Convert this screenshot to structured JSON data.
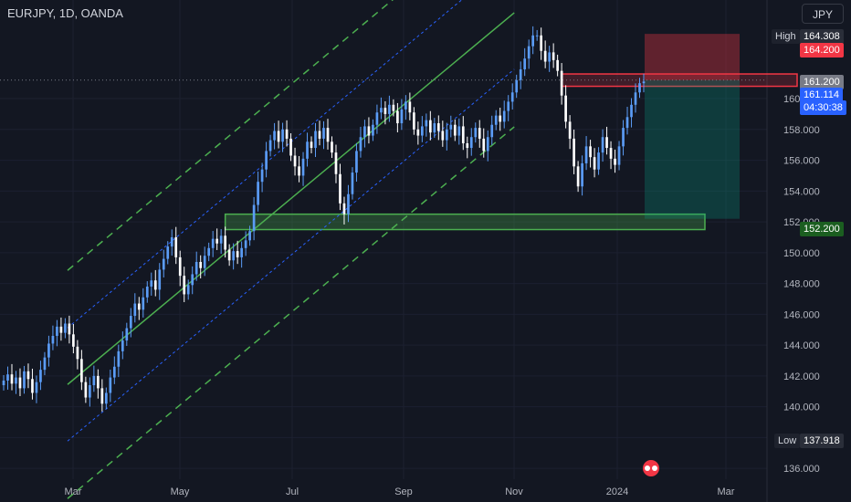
{
  "header": {
    "symbol": "EURJPY, 1D, OANDA",
    "currency": "JPY"
  },
  "price_tags": {
    "high_label": "High",
    "high_value": "164.308",
    "low_label": "Low",
    "low_value": "137.918",
    "target_high": "164.200",
    "resistance": "161.200",
    "last_price": "161.114",
    "countdown": "04:30:38",
    "support": "152.200"
  },
  "colors": {
    "background": "#131722",
    "up": "#5b9cf6",
    "down": "#ffffff",
    "channel": "#4caf50",
    "mid": "#2962ff",
    "support_zone": "#4caf50",
    "resistance_zone": "#f23645",
    "tp": "#089981",
    "sl": "#f23645"
  },
  "chart_data": {
    "type": "candlestick",
    "title": "EURJPY, 1D, OANDA",
    "x_ticks": [
      "Mar",
      "May",
      "Jul",
      "Sep",
      "Nov",
      "2024",
      "Mar"
    ],
    "y_ticks": [
      136,
      138,
      140,
      142,
      144,
      146,
      148,
      150,
      152,
      154,
      156,
      158,
      160
    ],
    "ylim": [
      135.3,
      166.4
    ],
    "series": [
      {
        "name": "EURJPY",
        "close": [
          141.7,
          142.1,
          141.5,
          141.9,
          141.2,
          142.3,
          141.8,
          140.9,
          141.6,
          142.4,
          143.2,
          144.1,
          144.6,
          145.2,
          144.8,
          145.4,
          144.7,
          143.9,
          143.1,
          141.6,
          140.6,
          141.4,
          142.0,
          141.2,
          140.2,
          140.9,
          141.9,
          142.6,
          143.6,
          144.3,
          145.1,
          145.9,
          146.7,
          146.3,
          147.1,
          147.8,
          148.2,
          147.6,
          148.9,
          149.6,
          150.4,
          151.0,
          149.7,
          148.5,
          147.3,
          147.9,
          148.6,
          149.4,
          149.0,
          149.8,
          150.3,
          150.9,
          150.6,
          151.1,
          150.2,
          149.5,
          150.1,
          149.7,
          150.3,
          150.8,
          151.4,
          153.1,
          154.6,
          155.4,
          156.6,
          157.3,
          157.9,
          157.2,
          158.0,
          157.4,
          156.3,
          155.6,
          155.0,
          156.1,
          157.2,
          156.8,
          157.9,
          157.4,
          158.1,
          157.2,
          156.5,
          155.1,
          153.2,
          152.5,
          153.8,
          155.2,
          156.6,
          157.5,
          158.2,
          157.6,
          158.3,
          159.1,
          159.4,
          159.0,
          159.6,
          159.2,
          158.4,
          159.3,
          159.8,
          159.1,
          158.0,
          157.6,
          158.2,
          158.6,
          157.8,
          158.4,
          157.9,
          157.3,
          158.0,
          158.3,
          157.6,
          158.2,
          157.1,
          156.8,
          157.5,
          158.1,
          157.4,
          156.6,
          157.5,
          158.3,
          158.9,
          158.5,
          159.2,
          159.8,
          160.4,
          161.2,
          161.9,
          162.6,
          163.4,
          164.1,
          164.1,
          163.1,
          162.4,
          163.0,
          162.5,
          161.8,
          160.2,
          158.5,
          157.4,
          155.6,
          154.3,
          155.8,
          156.9,
          156.2,
          155.4,
          156.5,
          157.5,
          156.8,
          156.1,
          155.7,
          156.9,
          158.1,
          158.8,
          159.6,
          160.4,
          161.0,
          161.11
        ]
      }
    ],
    "annotations": {
      "channel_center": [
        [
          0,
          145
        ],
        [
          120,
          163.8
        ]
      ],
      "support_zone": [
        151.5,
        152.5
      ],
      "resistance_zone": [
        160.8,
        161.6
      ],
      "entry": 161.2,
      "take_profit": 152.2,
      "stop": 164.2
    }
  }
}
